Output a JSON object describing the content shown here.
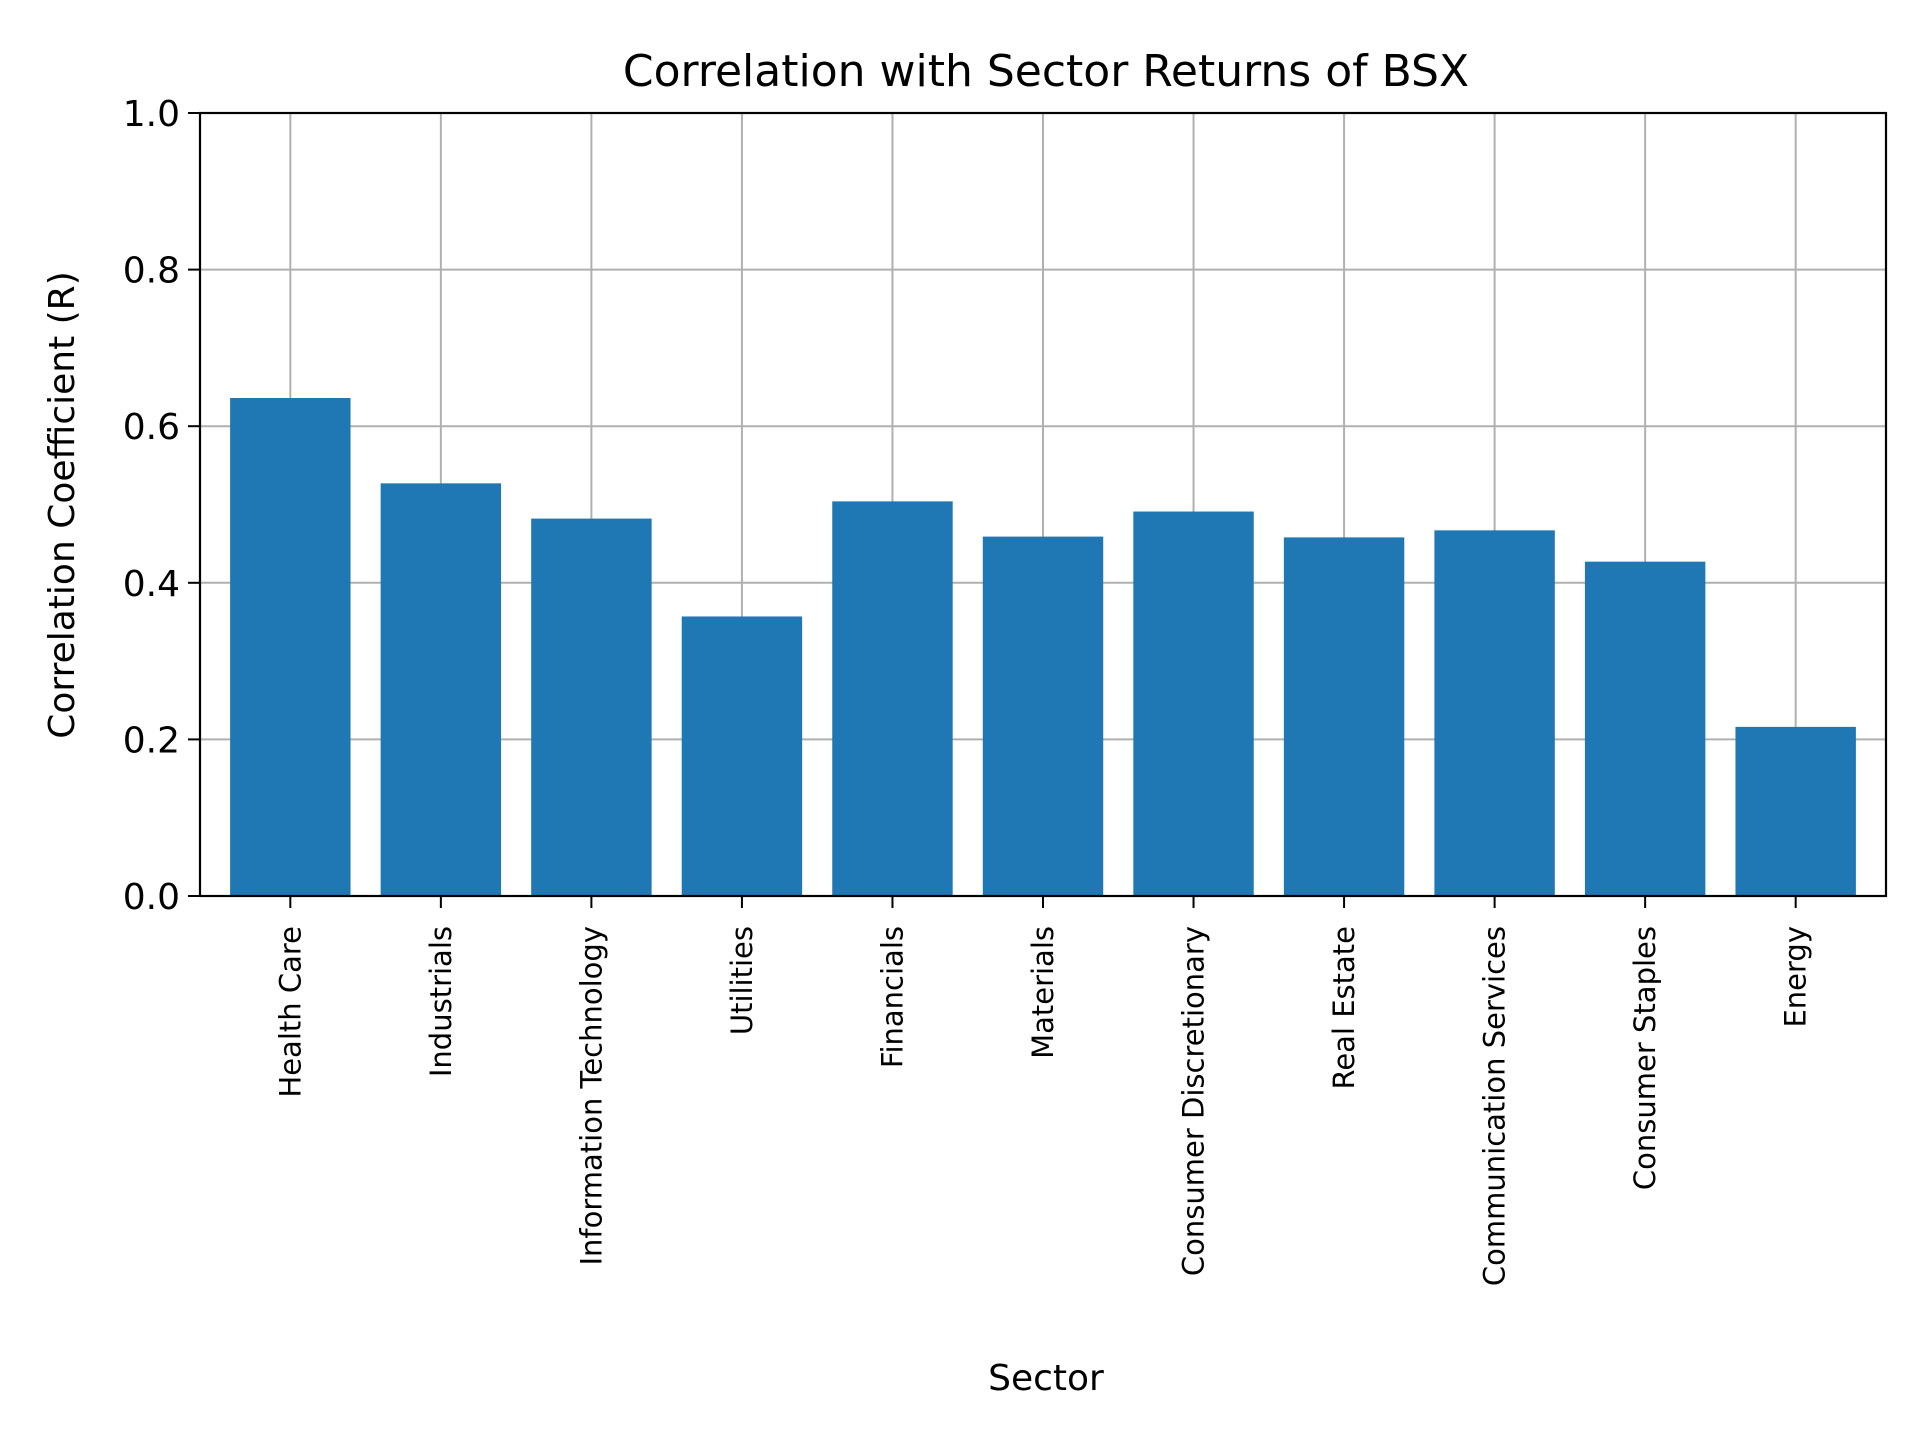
{
  "chart_data": {
    "type": "bar",
    "title": "Correlation with Sector Returns of BSX",
    "xlabel": "Sector",
    "ylabel": "Correlation Coefficient (R)",
    "categories": [
      "Health Care",
      "Industrials",
      "Information Technology",
      "Utilities",
      "Financials",
      "Materials",
      "Consumer Discretionary",
      "Real Estate",
      "Communication Services",
      "Consumer Staples",
      "Energy"
    ],
    "values": [
      0.636,
      0.527,
      0.482,
      0.357,
      0.504,
      0.459,
      0.491,
      0.458,
      0.467,
      0.427,
      0.216
    ],
    "ylim": [
      0,
      1.0
    ],
    "yticks": [
      "0.0",
      "0.2",
      "0.4",
      "0.6",
      "0.8",
      "1.0"
    ],
    "grid": true,
    "bar_color": "#1f77b4",
    "grid_color": "#b0b0b0"
  }
}
